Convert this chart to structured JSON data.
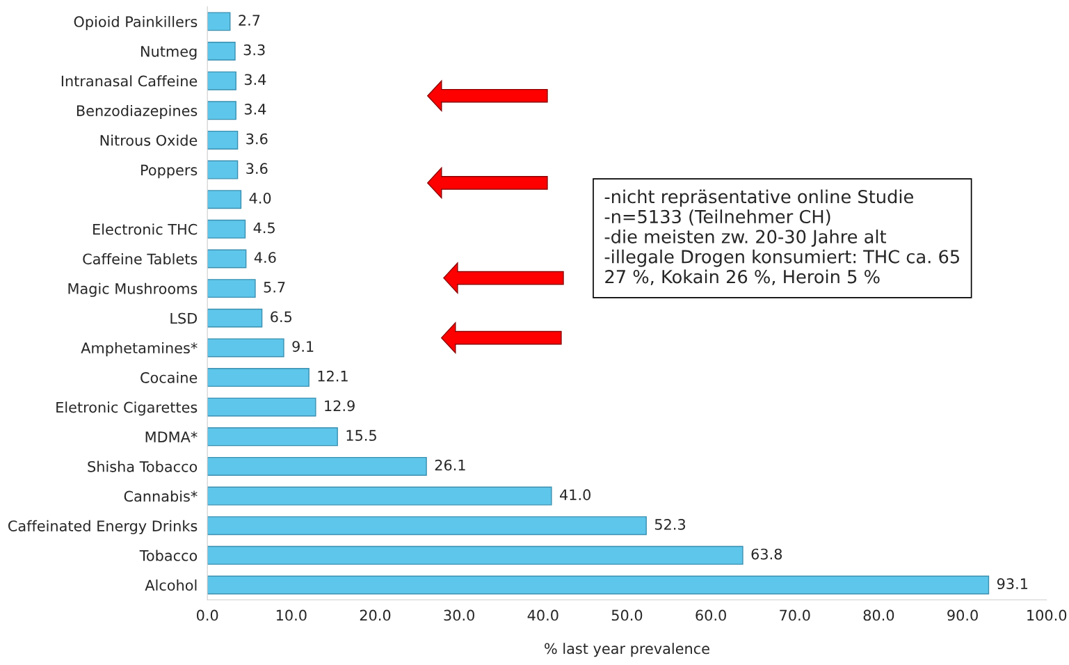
{
  "chart_data": {
    "type": "bar",
    "orientation": "horizontal",
    "xlabel": "% last year prevalence",
    "categories": [
      "Opioid Painkillers",
      "Nutmeg",
      "Intranasal Caffeine",
      "Benzodiazepines",
      "Nitrous Oxide",
      "Poppers",
      null,
      "Electronic THC",
      "Caffeine Tablets",
      "Magic Mushrooms",
      "LSD",
      "Amphetamines*",
      "Cocaine",
      "Eletronic Cigarettes",
      "MDMA*",
      "Shisha Tobacco",
      "Cannabis*",
      "Caffeinated Energy Drinks",
      "Tobacco",
      "Alcohol"
    ],
    "values": [
      2.7,
      3.3,
      3.4,
      3.4,
      3.6,
      3.6,
      4.0,
      4.5,
      4.6,
      5.7,
      6.5,
      9.1,
      12.1,
      12.9,
      15.5,
      26.1,
      41.0,
      52.3,
      63.8,
      93.1
    ],
    "value_labels": [
      "2.7",
      "3.3",
      "3.4",
      "3.4",
      "3.6",
      "3.6",
      "4.0",
      "4.5",
      "4.6",
      "5.7",
      "6.5",
      "9.1",
      "12.1",
      "12.9",
      "15.5",
      "26.1",
      "41.0",
      "52.3",
      "63.8",
      "93.1"
    ],
    "color": "#5ec6ea",
    "xlim": [
      0,
      100
    ],
    "xticks": [
      {
        "value": 0,
        "label": "0.0"
      },
      {
        "value": 10,
        "label": "10.0"
      },
      {
        "value": 20,
        "label": "20.0"
      },
      {
        "value": 30,
        "label": "30.0"
      },
      {
        "value": 40,
        "label": "40.0"
      },
      {
        "value": 50,
        "label": "50.0"
      },
      {
        "value": 60,
        "label": "60.0"
      },
      {
        "value": 70,
        "label": "70.0"
      },
      {
        "value": 80,
        "label": "80.0"
      },
      {
        "value": 90,
        "label": "90.0"
      },
      {
        "value": 100,
        "label": "100.0"
      }
    ],
    "grid": false,
    "legend": false,
    "annotations": [
      "-nicht repräsentative online Studie\n-n=5133 (Teilnehmer CH)\n-die meisten zw. 20-30 Jahre alt\n-illegale Drogen konsumiert: THC ca. 65\n27 %, Kokain 26 %, Heroin 5 %"
    ]
  }
}
